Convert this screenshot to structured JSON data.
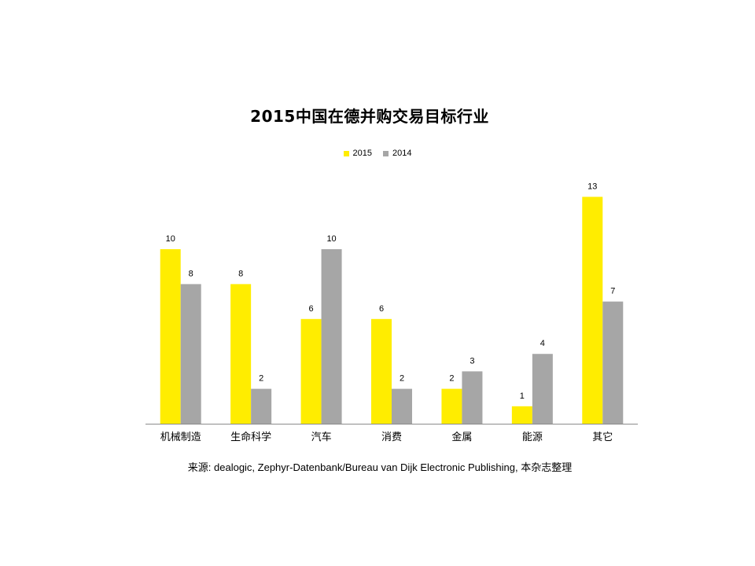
{
  "chart_data": {
    "type": "bar",
    "title": "2015中国在德并购交易目标行业",
    "categories": [
      "机械制造",
      "生命科学",
      "汽车",
      "消费",
      "金属",
      "能源",
      "其它"
    ],
    "series": [
      {
        "name": "2015",
        "color": "#FFED00",
        "values": [
          10,
          8,
          6,
          6,
          2,
          1,
          13
        ]
      },
      {
        "name": "2014",
        "color": "#A6A6A6",
        "values": [
          8,
          2,
          10,
          2,
          3,
          4,
          7
        ]
      }
    ],
    "xlabel": "",
    "ylabel": "",
    "ylim": [
      0,
      13
    ],
    "grid": false,
    "legend_position": "top-center",
    "data_labels": true,
    "source": "来源: dealogic, Zephyr-Datenbank/Bureau van Dijk Electronic Publishing, 本杂志整理"
  }
}
